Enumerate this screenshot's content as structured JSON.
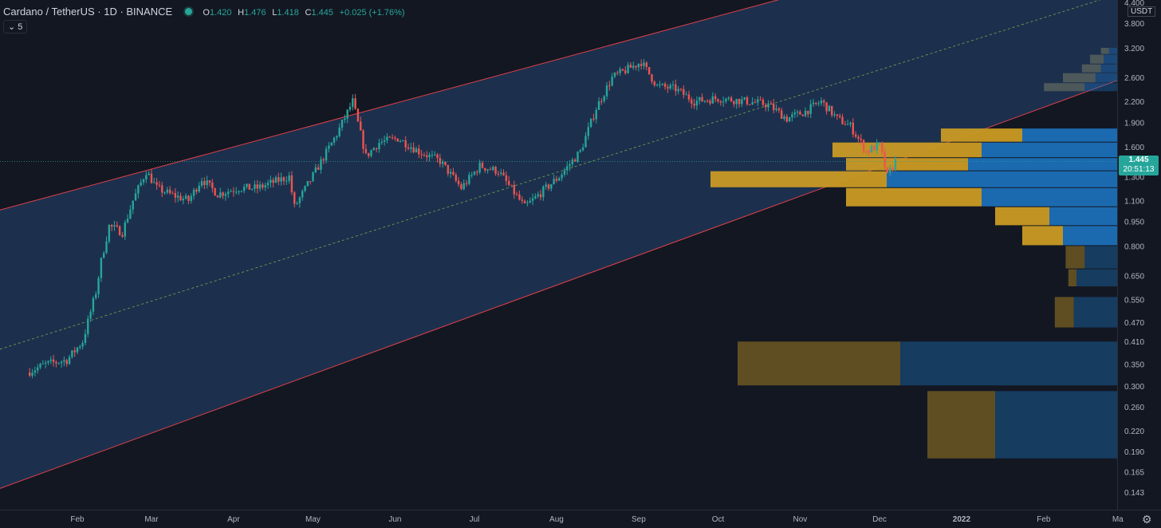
{
  "header": {
    "symbol": "Cardano / TetherUS · 1D · BINANCE",
    "open_label": "O",
    "open": "1.420",
    "high_label": "H",
    "high": "1.476",
    "low_label": "L",
    "low": "1.418",
    "close_label": "C",
    "close": "1.445",
    "change": "+0.025 (+1.76%)"
  },
  "indicator_toggle": "5",
  "currency": "USDT",
  "last_price": "1.445",
  "countdown": "20:51:13",
  "colors": {
    "background": "#131722",
    "channel_fill": "#1c3150",
    "channel_border": "#e0404a",
    "midline": "#8fc451",
    "up": "#26a69a",
    "down": "#ef5350",
    "vp_up": "#1b6fb8",
    "vp_down": "#c99a24"
  },
  "chart_data": {
    "type": "candlestick",
    "y_axis": {
      "scale": "log",
      "tick_labels": [
        "4.400",
        "3.800",
        "3.200",
        "2.600",
        "2.200",
        "1.900",
        "1.600",
        "1.300",
        "1.100",
        "0.950",
        "0.800",
        "0.650",
        "0.550",
        "0.470",
        "0.410",
        "0.350",
        "0.300",
        "0.260",
        "0.220",
        "0.190",
        "0.165",
        "0.143"
      ]
    },
    "x_axis": {
      "tick_labels": [
        "Feb",
        "Mar",
        "Apr",
        "May",
        "Jun",
        "Jul",
        "Aug",
        "Sep",
        "Oct",
        "Nov",
        "Dec",
        "2022",
        "Feb",
        "Ma"
      ]
    },
    "price_path": [
      {
        "date": "2021-01-13",
        "price": 0.33
      },
      {
        "date": "2021-01-20",
        "price": 0.35
      },
      {
        "date": "2021-01-28",
        "price": 0.36
      },
      {
        "date": "2021-02-03",
        "price": 0.41
      },
      {
        "date": "2021-02-08",
        "price": 0.58
      },
      {
        "date": "2021-02-10",
        "price": 0.72
      },
      {
        "date": "2021-02-13",
        "price": 0.92
      },
      {
        "date": "2021-02-18",
        "price": 0.88
      },
      {
        "date": "2021-02-22",
        "price": 1.1
      },
      {
        "date": "2021-02-27",
        "price": 1.35
      },
      {
        "date": "2021-03-03",
        "price": 1.2
      },
      {
        "date": "2021-03-08",
        "price": 1.15
      },
      {
        "date": "2021-03-15",
        "price": 1.1
      },
      {
        "date": "2021-03-20",
        "price": 1.28
      },
      {
        "date": "2021-03-26",
        "price": 1.15
      },
      {
        "date": "2021-04-03",
        "price": 1.2
      },
      {
        "date": "2021-04-10",
        "price": 1.2
      },
      {
        "date": "2021-04-16",
        "price": 1.25
      },
      {
        "date": "2021-04-22",
        "price": 1.3
      },
      {
        "date": "2021-04-24",
        "price": 1.05
      },
      {
        "date": "2021-05-02",
        "price": 1.35
      },
      {
        "date": "2021-05-10",
        "price": 1.75
      },
      {
        "date": "2021-05-16",
        "price": 2.2
      },
      {
        "date": "2021-05-21",
        "price": 1.5
      },
      {
        "date": "2021-05-26",
        "price": 1.65
      },
      {
        "date": "2021-06-02",
        "price": 1.7
      },
      {
        "date": "2021-06-10",
        "price": 1.55
      },
      {
        "date": "2021-06-18",
        "price": 1.45
      },
      {
        "date": "2021-06-26",
        "price": 1.2
      },
      {
        "date": "2021-07-03",
        "price": 1.4
      },
      {
        "date": "2021-07-10",
        "price": 1.35
      },
      {
        "date": "2021-07-20",
        "price": 1.05
      },
      {
        "date": "2021-08-02",
        "price": 1.3
      },
      {
        "date": "2021-08-10",
        "price": 1.55
      },
      {
        "date": "2021-08-16",
        "price": 2.1
      },
      {
        "date": "2021-08-22",
        "price": 2.6
      },
      {
        "date": "2021-09-02",
        "price": 2.9
      },
      {
        "date": "2021-09-08",
        "price": 2.45
      },
      {
        "date": "2021-09-15",
        "price": 2.4
      },
      {
        "date": "2021-09-22",
        "price": 2.2
      },
      {
        "date": "2021-10-01",
        "price": 2.25
      },
      {
        "date": "2021-10-12",
        "price": 2.2
      },
      {
        "date": "2021-10-20",
        "price": 2.15
      },
      {
        "date": "2021-10-27",
        "price": 1.95
      },
      {
        "date": "2021-11-03",
        "price": 2.05
      },
      {
        "date": "2021-11-09",
        "price": 2.2
      },
      {
        "date": "2021-11-15",
        "price": 1.95
      },
      {
        "date": "2021-11-20",
        "price": 1.85
      },
      {
        "date": "2021-11-26",
        "price": 1.55
      },
      {
        "date": "2021-12-01",
        "price": 1.62
      },
      {
        "date": "2021-12-04",
        "price": 1.3
      },
      {
        "date": "2021-12-07",
        "price": 1.445
      }
    ],
    "ohlc_last": {
      "open": 1.42,
      "high": 1.476,
      "low": 1.418,
      "close": 1.445
    },
    "channel": {
      "upper": [
        {
          "date": "2021-01-01",
          "price": 1.02
        },
        {
          "date": "2021-12-31",
          "price": 6.3
        }
      ],
      "lower": [
        {
          "date": "2021-01-01",
          "price": 0.145
        },
        {
          "date": "2021-12-31",
          "price": 1.7
        }
      ]
    },
    "volume_profile": [
      {
        "price_low": 1.35,
        "price_high": 1.48,
        "up": 0.55,
        "down": 0.45
      },
      {
        "price_low": 1.48,
        "price_high": 1.65,
        "up": 0.5,
        "down": 0.55
      },
      {
        "price_low": 1.65,
        "price_high": 1.82,
        "up": 0.35,
        "down": 0.3
      },
      {
        "price_low": 1.2,
        "price_high": 1.35,
        "up": 0.85,
        "down": 0.65
      },
      {
        "price_low": 1.05,
        "price_high": 1.2,
        "up": 0.5,
        "down": 0.5
      },
      {
        "price_low": 0.92,
        "price_high": 1.05,
        "up": 0.25,
        "down": 0.2
      },
      {
        "price_low": 0.8,
        "price_high": 0.92,
        "up": 0.2,
        "down": 0.15
      },
      {
        "price_low": 0.68,
        "price_high": 0.8,
        "up": 0.12,
        "down": 0.07
      },
      {
        "price_low": 0.6,
        "price_high": 0.68,
        "up": 0.15,
        "down": 0.03
      },
      {
        "price_low": 0.45,
        "price_high": 0.56,
        "up": 0.16,
        "down": 0.07
      },
      {
        "price_low": 0.3,
        "price_high": 0.41,
        "up": 0.8,
        "down": 0.6
      },
      {
        "price_low": 0.18,
        "price_high": 0.29,
        "up": 0.45,
        "down": 0.25
      }
    ]
  }
}
